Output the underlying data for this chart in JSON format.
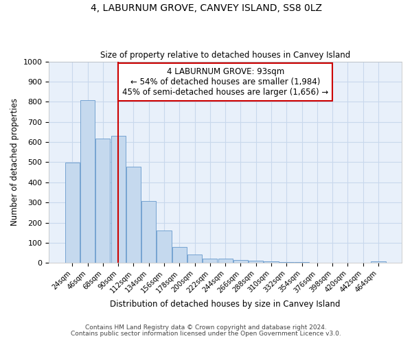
{
  "title": "4, LABURNUM GROVE, CANVEY ISLAND, SS8 0LZ",
  "subtitle": "Size of property relative to detached houses in Canvey Island",
  "xlabel": "Distribution of detached houses by size in Canvey Island",
  "ylabel": "Number of detached properties",
  "footnote1": "Contains HM Land Registry data © Crown copyright and database right 2024.",
  "footnote2": "Contains public sector information licensed under the Open Government Licence v3.0.",
  "bar_color": "#c5d9ee",
  "bar_edge_color": "#6699cc",
  "annotation_line1": "4 LABURNUM GROVE: 93sqm",
  "annotation_line2": "← 54% of detached houses are smaller (1,984)",
  "annotation_line3": "45% of semi-detached houses are larger (1,656) →",
  "property_line_color": "#cc0000",
  "property_bar_index": 3,
  "categories": [
    "24sqm",
    "46sqm",
    "68sqm",
    "90sqm",
    "112sqm",
    "134sqm",
    "156sqm",
    "178sqm",
    "200sqm",
    "222sqm",
    "244sqm",
    "266sqm",
    "288sqm",
    "310sqm",
    "332sqm",
    "354sqm",
    "376sqm",
    "398sqm",
    "420sqm",
    "442sqm",
    "464sqm"
  ],
  "values": [
    497,
    807,
    617,
    632,
    478,
    308,
    160,
    78,
    42,
    22,
    22,
    15,
    10,
    8,
    5,
    4,
    1,
    0,
    0,
    0,
    8
  ],
  "ylim": [
    0,
    1000
  ],
  "yticks": [
    0,
    100,
    200,
    300,
    400,
    500,
    600,
    700,
    800,
    900,
    1000
  ],
  "grid_color": "#c8d8ec",
  "background_color": "#e8f0fa",
  "figsize": [
    6.0,
    5.0
  ],
  "dpi": 100
}
